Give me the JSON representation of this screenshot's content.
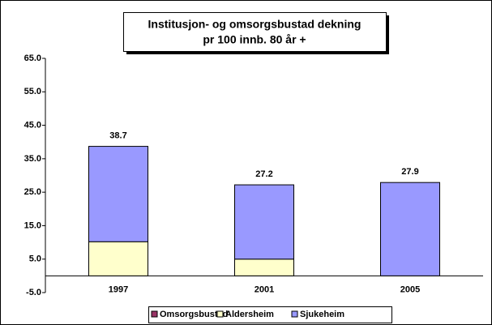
{
  "chart_data": {
    "type": "stacked_bar",
    "title": [
      "Institusjon- og omsorgsbustad dekning",
      "pr 100 innb. 80 år +"
    ],
    "categories": [
      "1997",
      "2001",
      "2005"
    ],
    "series": [
      {
        "name": "Omsorgsbustad",
        "color": "#993366",
        "values": [
          0,
          0,
          0
        ]
      },
      {
        "name": "Aldersheim",
        "color": "#ffffcc",
        "values": [
          10.2,
          5.0,
          0
        ]
      },
      {
        "name": "Sjukeheim",
        "color": "#9999ff",
        "values": [
          28.5,
          22.2,
          27.9
        ]
      }
    ],
    "totals": [
      38.7,
      27.2,
      27.9
    ],
    "ylim": [
      -5,
      65
    ],
    "yticks": [
      {
        "value": -5,
        "label": "-5.0"
      },
      {
        "value": 5,
        "label": "5.0"
      },
      {
        "value": 15,
        "label": "15.0"
      },
      {
        "value": 25,
        "label": "25.0"
      },
      {
        "value": 35,
        "label": "35.0"
      },
      {
        "value": 45,
        "label": "45.0"
      },
      {
        "value": 55,
        "label": "55.0"
      },
      {
        "value": 65,
        "label": "65.0"
      }
    ],
    "grid": false,
    "legend": "bottom"
  }
}
